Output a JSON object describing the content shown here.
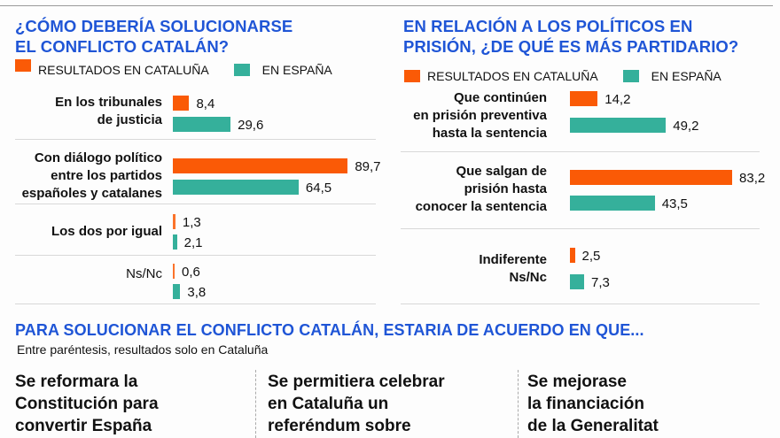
{
  "colors": {
    "cataluna": "#fa5a06",
    "espana": "#35b09b",
    "title": "#1f55d6"
  },
  "chart_data": [
    {
      "type": "bar",
      "orientation": "horizontal",
      "title": "¿CÓMO DEBERÍA SOLUCIONARSE EL CONFLICTO CATALÁN?",
      "title_lines": [
        "¿CÓMO DEBERÍA SOLUCIONARSE",
        "EL CONFLICTO CATALÁN?"
      ],
      "legend": [
        "RESULTADOS EN CATALUÑA",
        "EN ESPAÑA"
      ],
      "categories": [
        {
          "lines": [
            "En los tribunales",
            "de justicia"
          ],
          "bold": true
        },
        {
          "lines": [
            "Con diálogo político",
            "entre los partidos",
            "españoles y catalanes"
          ],
          "bold": true
        },
        {
          "lines": [
            "Los dos por igual"
          ],
          "bold": true
        },
        {
          "lines": [
            "Ns/Nc"
          ],
          "bold": false
        }
      ],
      "series": [
        {
          "name": "RESULTADOS EN CATALUÑA",
          "values": [
            8.4,
            89.7,
            1.3,
            0.6
          ],
          "labels": [
            "8,4",
            "89,7",
            "1,3",
            "0,6"
          ]
        },
        {
          "name": "EN ESPAÑA",
          "values": [
            29.6,
            64.5,
            2.1,
            3.8
          ],
          "labels": [
            "29,6",
            "64,5",
            "2,1",
            "3,8"
          ]
        }
      ],
      "xlim": [
        0,
        100
      ]
    },
    {
      "type": "bar",
      "orientation": "horizontal",
      "title": "EN RELACIÓN A LOS POLÍTICOS EN PRISIÓN, ¿DE QUÉ ES MÁS PARTIDARIO?",
      "title_lines": [
        "EN RELACIÓN A LOS POLÍTICOS EN",
        "PRISIÓN, ¿DE QUÉ ES MÁS PARTIDARIO?"
      ],
      "legend": [
        "RESULTADOS EN CATALUÑA",
        "EN ESPAÑA"
      ],
      "categories": [
        {
          "lines": [
            "Que continúen",
            "en prisión preventiva",
            "hasta la sentencia"
          ],
          "bold": true
        },
        {
          "lines": [
            "Que salgan de",
            "prisión hasta",
            "conocer la sentencia"
          ],
          "bold": true
        },
        {
          "lines": [
            "Indiferente",
            "Ns/Nc"
          ],
          "bold": true
        }
      ],
      "series": [
        {
          "name": "RESULTADOS EN CATALUÑA",
          "values": [
            14.2,
            83.2,
            2.5
          ],
          "labels": [
            "14,2",
            "83,2",
            "2,5"
          ]
        },
        {
          "name": "EN ESPAÑA",
          "values": [
            49.2,
            43.5,
            7.3
          ],
          "labels": [
            "49,2",
            "43,5",
            "7,3"
          ]
        }
      ],
      "xlim": [
        0,
        100
      ]
    }
  ],
  "bottom": {
    "title": "PARA SOLUCIONAR EL CONFLICTO CATALÁN, ESTARIA DE ACUERDO EN QUE...",
    "note": "Entre paréntesis, resultados solo en Cataluña",
    "cards": [
      {
        "lines": [
          "Se reformara la",
          "Constitución para",
          "convertir España"
        ]
      },
      {
        "lines": [
          "Se permitiera celebrar",
          "en Cataluña un",
          "referéndum sobre"
        ]
      },
      {
        "lines": [
          "Se mejorase",
          "la financiación",
          "de la Generalitat"
        ]
      }
    ]
  }
}
